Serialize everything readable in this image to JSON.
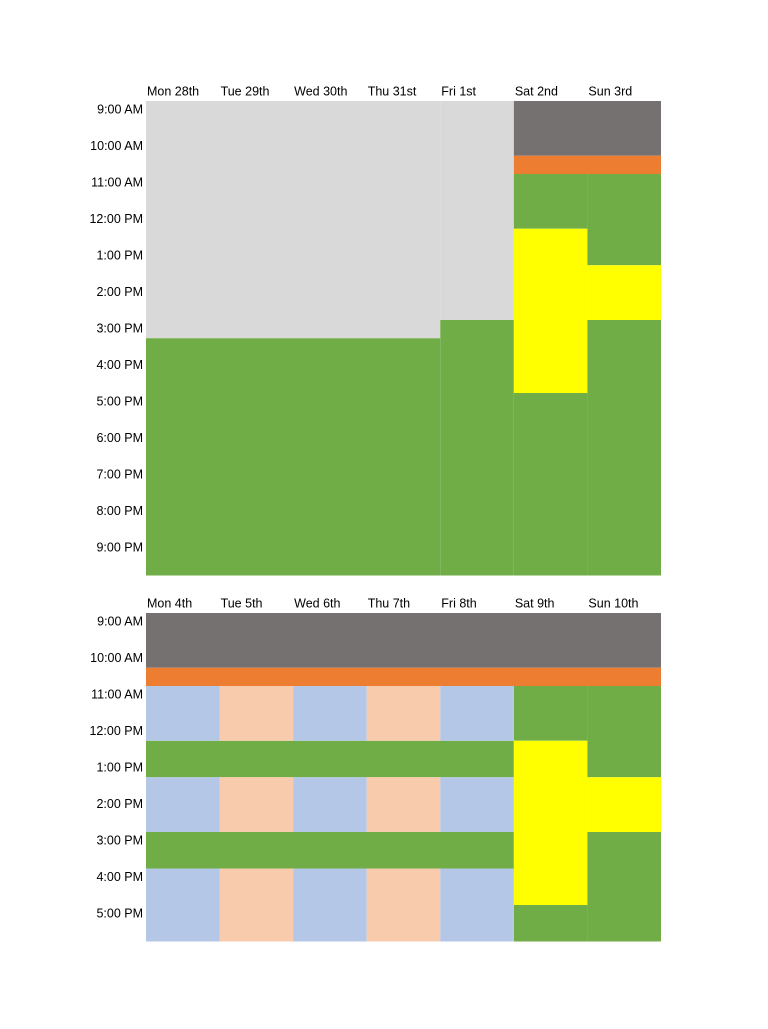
{
  "schedules": [
    {
      "days": [
        "Mon 28th",
        "Tue 29th",
        "Wed 30th",
        "Thu 31st",
        "Fri 1st",
        "Sat 2nd",
        "Sun 3rd"
      ],
      "times": [
        "9:00 AM",
        "10:00 AM",
        "11:00 AM",
        "12:00 PM",
        "1:00 PM",
        "2:00 PM",
        "3:00 PM",
        "4:00 PM",
        "5:00 PM",
        "6:00 PM",
        "7:00 PM",
        "8:00 PM",
        "9:00 PM"
      ]
    },
    {
      "days": [
        "Mon 4th",
        "Tue 5th",
        "Wed 6th",
        "Thu 7th",
        "Fri 8th",
        "Sat 9th",
        "Sun 10th"
      ],
      "times": [
        "9:00 AM",
        "10:00 AM",
        "11:00 AM",
        "12:00 PM",
        "1:00 PM",
        "2:00 PM",
        "3:00 PM",
        "4:00 PM",
        "5:00 PM"
      ]
    }
  ]
}
